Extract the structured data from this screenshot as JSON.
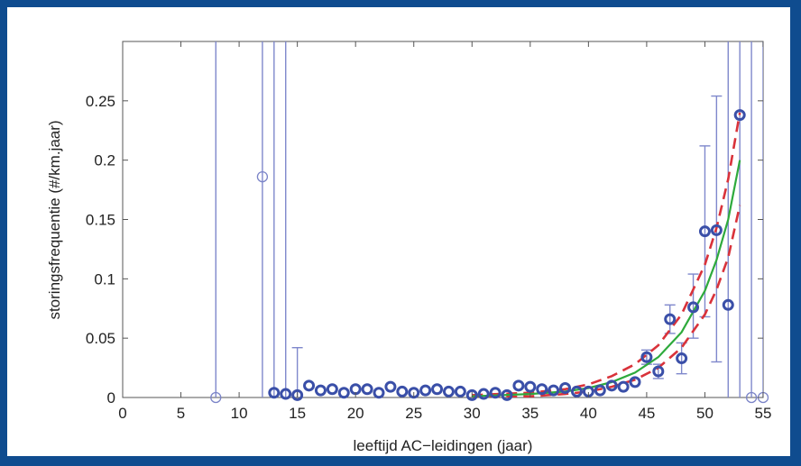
{
  "chart_data": {
    "type": "scatter",
    "title": "",
    "xlabel": "leeftijd AC−leidingen (jaar)",
    "ylabel": "storingsfrequentie (#/km.jaar)",
    "xlim": [
      0,
      55
    ],
    "ylim": [
      0,
      0.3
    ],
    "xticks": [
      0,
      5,
      10,
      15,
      20,
      25,
      30,
      35,
      40,
      45,
      50,
      55
    ],
    "yticks": [
      0,
      0.05,
      0.1,
      0.15,
      0.2,
      0.25
    ],
    "ytick_labels": [
      "0",
      "0.05",
      "0.1",
      "0.15",
      "0.2",
      "0.25"
    ],
    "grid": false,
    "legend": "none",
    "colors": {
      "points": "#3a4fa8",
      "points_light": "#7b84c8",
      "errorbars": "#7f88cc",
      "fit": "#2eaa3c",
      "confidence": "#d9323a",
      "background_border": "#0f4c8f"
    },
    "points": [
      {
        "x": 8,
        "y": 0.0,
        "err": [
          0,
          0.3
        ],
        "hollow": true
      },
      {
        "x": 12,
        "y": 0.186,
        "err": [
          0,
          0.3
        ],
        "hollow": true
      },
      {
        "x": 13,
        "y": 0.004,
        "err": [
          0,
          0.3
        ]
      },
      {
        "x": 14,
        "y": 0.003,
        "err": [
          0,
          0.3
        ]
      },
      {
        "x": 15,
        "y": 0.002,
        "err": [
          0,
          0.042
        ]
      },
      {
        "x": 16,
        "y": 0.01
      },
      {
        "x": 17,
        "y": 0.006
      },
      {
        "x": 18,
        "y": 0.007
      },
      {
        "x": 19,
        "y": 0.004
      },
      {
        "x": 20,
        "y": 0.007
      },
      {
        "x": 21,
        "y": 0.007
      },
      {
        "x": 22,
        "y": 0.004
      },
      {
        "x": 23,
        "y": 0.009
      },
      {
        "x": 24,
        "y": 0.005
      },
      {
        "x": 25,
        "y": 0.004
      },
      {
        "x": 26,
        "y": 0.006
      },
      {
        "x": 27,
        "y": 0.007
      },
      {
        "x": 28,
        "y": 0.005
      },
      {
        "x": 29,
        "y": 0.005
      },
      {
        "x": 30,
        "y": 0.002
      },
      {
        "x": 31,
        "y": 0.003
      },
      {
        "x": 32,
        "y": 0.004
      },
      {
        "x": 33,
        "y": 0.002
      },
      {
        "x": 34,
        "y": 0.01
      },
      {
        "x": 35,
        "y": 0.009
      },
      {
        "x": 36,
        "y": 0.007
      },
      {
        "x": 37,
        "y": 0.006
      },
      {
        "x": 38,
        "y": 0.008
      },
      {
        "x": 39,
        "y": 0.005
      },
      {
        "x": 40,
        "y": 0.005
      },
      {
        "x": 41,
        "y": 0.006
      },
      {
        "x": 42,
        "y": 0.01
      },
      {
        "x": 43,
        "y": 0.009
      },
      {
        "x": 44,
        "y": 0.013
      },
      {
        "x": 45,
        "y": 0.034,
        "err": [
          0.028,
          0.04
        ]
      },
      {
        "x": 46,
        "y": 0.022,
        "err": [
          0.016,
          0.028
        ]
      },
      {
        "x": 47,
        "y": 0.066,
        "err": [
          0.054,
          0.078
        ]
      },
      {
        "x": 48,
        "y": 0.033,
        "err": [
          0.02,
          0.046
        ]
      },
      {
        "x": 49,
        "y": 0.076,
        "err": [
          0.05,
          0.104
        ]
      },
      {
        "x": 50,
        "y": 0.14,
        "err": [
          0.068,
          0.212
        ]
      },
      {
        "x": 51,
        "y": 0.141,
        "err": [
          0.03,
          0.254
        ]
      },
      {
        "x": 52,
        "y": 0.078,
        "err": [
          0,
          0.3
        ]
      },
      {
        "x": 53,
        "y": 0.238,
        "err": [
          0,
          0.3
        ]
      },
      {
        "x": 54,
        "y": 0.0,
        "err": [
          0,
          0.3
        ],
        "hollow": true
      },
      {
        "x": 55,
        "y": 0.0,
        "err": [
          0,
          0.3
        ],
        "hollow": true
      }
    ],
    "fit_curve": {
      "name": "",
      "x": [
        30,
        35,
        38,
        40,
        42,
        44,
        46,
        48,
        50,
        51,
        52,
        53
      ],
      "y": [
        0.001,
        0.003,
        0.005,
        0.008,
        0.013,
        0.021,
        0.034,
        0.055,
        0.09,
        0.116,
        0.15,
        0.2
      ]
    },
    "confidence_upper": {
      "name": "",
      "x": [
        30,
        35,
        38,
        40,
        42,
        44,
        46,
        48,
        50,
        51,
        52,
        53
      ],
      "y": [
        0.002,
        0.004,
        0.007,
        0.011,
        0.018,
        0.028,
        0.044,
        0.07,
        0.112,
        0.143,
        0.184,
        0.24
      ]
    },
    "confidence_lower": {
      "name": "",
      "x": [
        30,
        35,
        38,
        40,
        42,
        44,
        46,
        48,
        50,
        51,
        52,
        53
      ],
      "y": [
        0.0,
        0.001,
        0.003,
        0.005,
        0.009,
        0.015,
        0.025,
        0.042,
        0.07,
        0.091,
        0.118,
        0.162
      ]
    }
  }
}
